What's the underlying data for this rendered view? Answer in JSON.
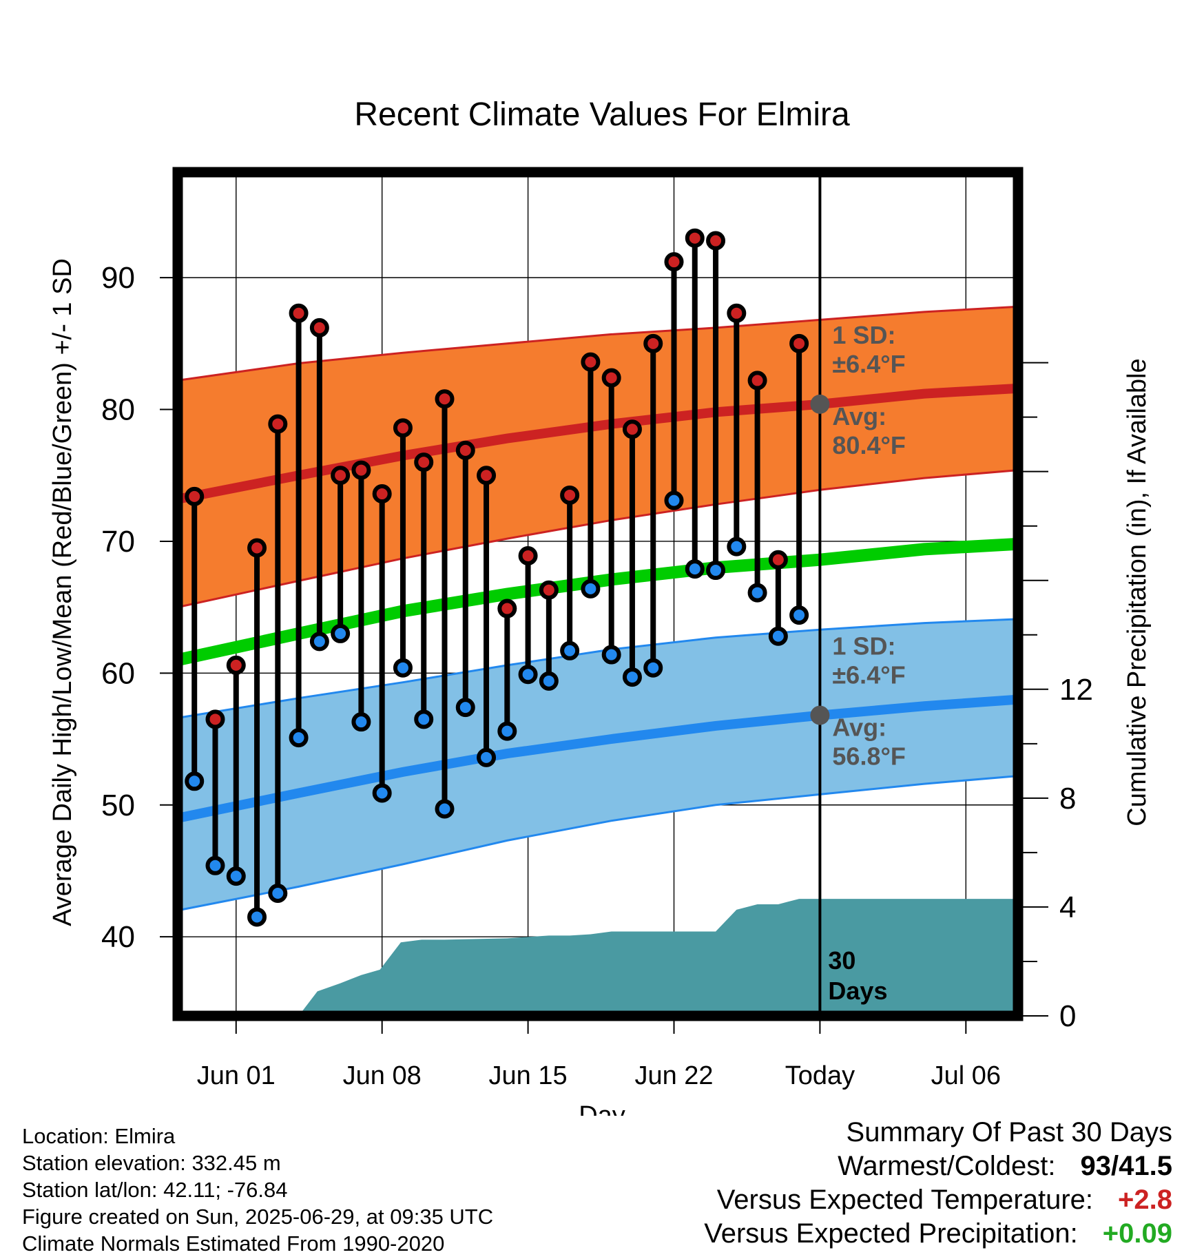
{
  "colors": {
    "high": "#CC2222",
    "low": "#2288EE",
    "mean": "#00CC00",
    "high_band": "#F57C2E",
    "low_band": "#82C0E6",
    "precip": "#4A9AA2",
    "annotation": "#555555",
    "positive_temp": "#CC2222",
    "positive_precip": "#22AA22"
  },
  "chart_data": {
    "type": "line",
    "title": "Recent Climate Values For Elmira",
    "xlabel": "Day",
    "ylabel": "Average Daily High/Low/Mean (Red/Blue/Green) +/- 1 SD",
    "y2label": "Cumulative Precipitation (in), If Available",
    "x_ticks": [
      "Jun 01",
      "Jun 08",
      "Jun 15",
      "Jun 22",
      "Today",
      "Jul 06"
    ],
    "x_tick_days": [
      2,
      9,
      16,
      23,
      30,
      37
    ],
    "xlim": [
      -0.8,
      39.5
    ],
    "ylim": [
      34,
      98
    ],
    "y_ticks": [
      40,
      50,
      60,
      70,
      80,
      90
    ],
    "y2lim": [
      0,
      31
    ],
    "y2_ticks": [
      0,
      4,
      8,
      12
    ],
    "grid": true,
    "today_day": 30,
    "days_label": [
      "30",
      "Days"
    ],
    "observed": {
      "days": [
        0,
        1,
        2,
        3,
        4,
        5,
        6,
        7,
        8,
        9,
        10,
        11,
        12,
        13,
        14,
        15,
        16,
        17,
        18,
        19,
        20,
        21,
        22,
        23,
        24,
        25,
        26,
        27,
        28,
        29
      ],
      "highs": [
        73.4,
        56.5,
        60.6,
        69.5,
        78.9,
        87.3,
        86.2,
        75.0,
        75.4,
        73.6,
        78.6,
        76.0,
        80.8,
        76.9,
        75.0,
        64.9,
        68.9,
        66.3,
        73.5,
        83.6,
        82.4,
        78.5,
        85.0,
        91.2,
        93.0,
        92.8,
        87.3,
        82.2,
        68.6,
        85.0
      ],
      "lows": [
        51.8,
        45.4,
        44.6,
        41.5,
        43.3,
        55.1,
        62.4,
        63.0,
        56.3,
        50.9,
        60.4,
        56.5,
        49.7,
        57.4,
        53.6,
        55.6,
        59.9,
        59.4,
        61.7,
        66.4,
        61.4,
        59.7,
        60.4,
        73.1,
        67.9,
        67.8,
        69.6,
        66.1,
        62.8,
        64.4
      ]
    },
    "normals": {
      "days": [
        -0.8,
        5,
        10,
        15,
        20,
        25,
        30,
        35,
        39.5
      ],
      "avg_high": [
        73.2,
        75.0,
        76.5,
        77.8,
        78.9,
        79.8,
        80.4,
        81.2,
        81.6
      ],
      "avg_low": [
        49.0,
        50.9,
        52.5,
        53.9,
        55.0,
        56.0,
        56.8,
        57.5,
        58.0
      ],
      "avg_mean": [
        61.0,
        63.0,
        64.7,
        66.0,
        67.1,
        68.0,
        68.6,
        69.4,
        69.8
      ],
      "high_sd": 6.4,
      "low_sd": 6.4,
      "high_sd_upper": [
        82.2,
        83.5,
        84.3,
        85.0,
        85.7,
        86.2,
        86.8,
        87.4,
        87.8
      ],
      "high_sd_lower": [
        65.0,
        67.0,
        68.7,
        70.2,
        71.6,
        72.8,
        73.9,
        74.8,
        75.4
      ],
      "low_sd_upper": [
        56.6,
        58.1,
        59.3,
        60.6,
        61.8,
        62.7,
        63.3,
        63.8,
        64.1
      ],
      "low_sd_lower": [
        42.0,
        43.8,
        45.5,
        47.3,
        48.8,
        50.0,
        50.8,
        51.6,
        52.2
      ]
    },
    "precip_cumulative": {
      "days": [
        5.0,
        5.9,
        7.0,
        8.0,
        8.9,
        9.9,
        10.9,
        12.0,
        15.0,
        16.0,
        17.0,
        18.0,
        19.0,
        20.0,
        23.0,
        24.0,
        25.0,
        26.0,
        27.0,
        28.0,
        29.0,
        30.0,
        39.5
      ],
      "values": [
        0,
        0.9,
        1.2,
        1.5,
        1.7,
        2.7,
        2.8,
        2.8,
        2.85,
        2.9,
        2.95,
        2.95,
        3.0,
        3.1,
        3.1,
        3.1,
        3.1,
        3.9,
        4.1,
        4.1,
        4.3,
        4.3,
        4.3
      ]
    },
    "annotations": {
      "high_sd_label": [
        "1 SD:",
        "±6.4°F"
      ],
      "high_avg_label": [
        "Avg:",
        "80.4°F"
      ],
      "low_sd_label": [
        "1 SD:",
        "±6.4°F"
      ],
      "low_avg_label": [
        "Avg:",
        "56.8°F"
      ]
    }
  },
  "footer": {
    "location": "Location: Elmira",
    "elevation": "Station elevation: 332.45 m",
    "latlon": "Station lat/lon: 42.11; -76.84",
    "created": "Figure created on Sun, 2025-06-29, at 09:35 UTC",
    "normals": "Climate Normals Estimated From 1990-2020"
  },
  "summary": {
    "title": "Summary Of Past 30 Days",
    "warmest_label": "Warmest/Coldest:",
    "warmest_value": "93/41.5",
    "temp_label": "Versus Expected Temperature:",
    "temp_value": "+2.8",
    "precip_label": "Versus Expected Precipitation:",
    "precip_value": "+0.09"
  }
}
